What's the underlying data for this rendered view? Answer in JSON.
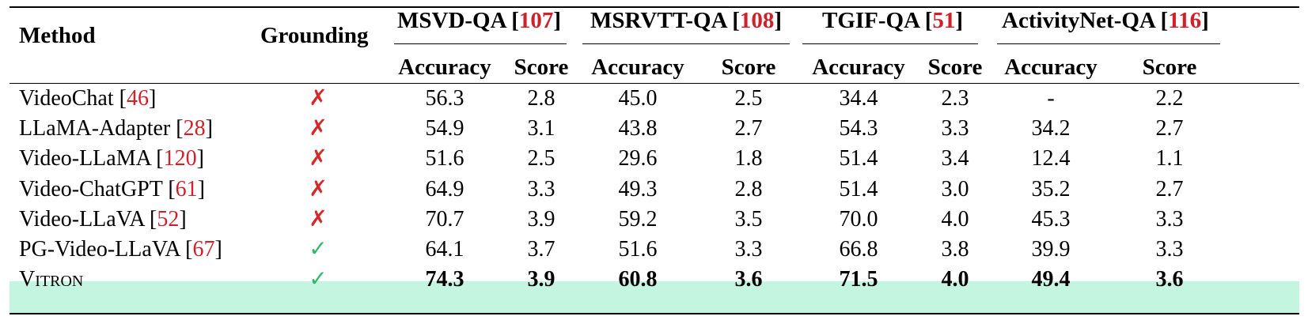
{
  "header": {
    "method": "Method",
    "grounding": "Grounding",
    "groups": [
      {
        "name": "MSVD-QA [",
        "cite": "107",
        "close": "]"
      },
      {
        "name": "MSRVTT-QA [",
        "cite": "108",
        "close": "]"
      },
      {
        "name": "TGIF-QA [",
        "cite": "51",
        "close": "]"
      },
      {
        "name": "ActivityNet-QA [",
        "cite": "116",
        "close": "]"
      }
    ],
    "accuracy": "Accuracy",
    "score": "Score"
  },
  "rows": [
    {
      "name": "VideoChat [",
      "cite": "46",
      "close": "]",
      "grounding": "✗",
      "values": [
        "56.3",
        "2.8",
        "45.0",
        "2.5",
        "34.4",
        "2.3",
        "-",
        "2.2"
      ]
    },
    {
      "name": "LLaMA-Adapter [",
      "cite": "28",
      "close": "]",
      "grounding": "✗",
      "values": [
        "54.9",
        "3.1",
        "43.8",
        "2.7",
        "54.3",
        "3.3",
        "34.2",
        "2.7"
      ]
    },
    {
      "name": "Video-LLaMA [",
      "cite": "120",
      "close": "]",
      "grounding": "✗",
      "values": [
        "51.6",
        "2.5",
        "29.6",
        "1.8",
        "51.4",
        "3.4",
        "12.4",
        "1.1"
      ]
    },
    {
      "name": "Video-ChatGPT [",
      "cite": "61",
      "close": "]",
      "grounding": "✗",
      "values": [
        "64.9",
        "3.3",
        "49.3",
        "2.8",
        "51.4",
        "3.0",
        "35.2",
        "2.7"
      ]
    },
    {
      "name": "Video-LLaVA [",
      "cite": "52",
      "close": "]",
      "grounding": "✗",
      "values": [
        "70.7",
        "3.9",
        "59.2",
        "3.5",
        "70.0",
        "4.0",
        "45.3",
        "3.3"
      ]
    },
    {
      "name": "PG-Video-LLaVA [",
      "cite": "67",
      "close": "]",
      "grounding": "✓",
      "values": [
        "64.1",
        "3.7",
        "51.6",
        "3.3",
        "66.8",
        "3.8",
        "39.9",
        "3.3"
      ]
    },
    {
      "name": "Vitron",
      "cite": "",
      "close": "",
      "grounding": "✓",
      "values": [
        "74.3",
        "3.9",
        "60.8",
        "3.6",
        "71.5",
        "4.0",
        "49.4",
        "3.6"
      ]
    }
  ],
  "colors": {
    "cite": "#d0202a",
    "cross": "#d42a2a",
    "check": "#2fb86a",
    "highlight": "#c3f5e1"
  }
}
